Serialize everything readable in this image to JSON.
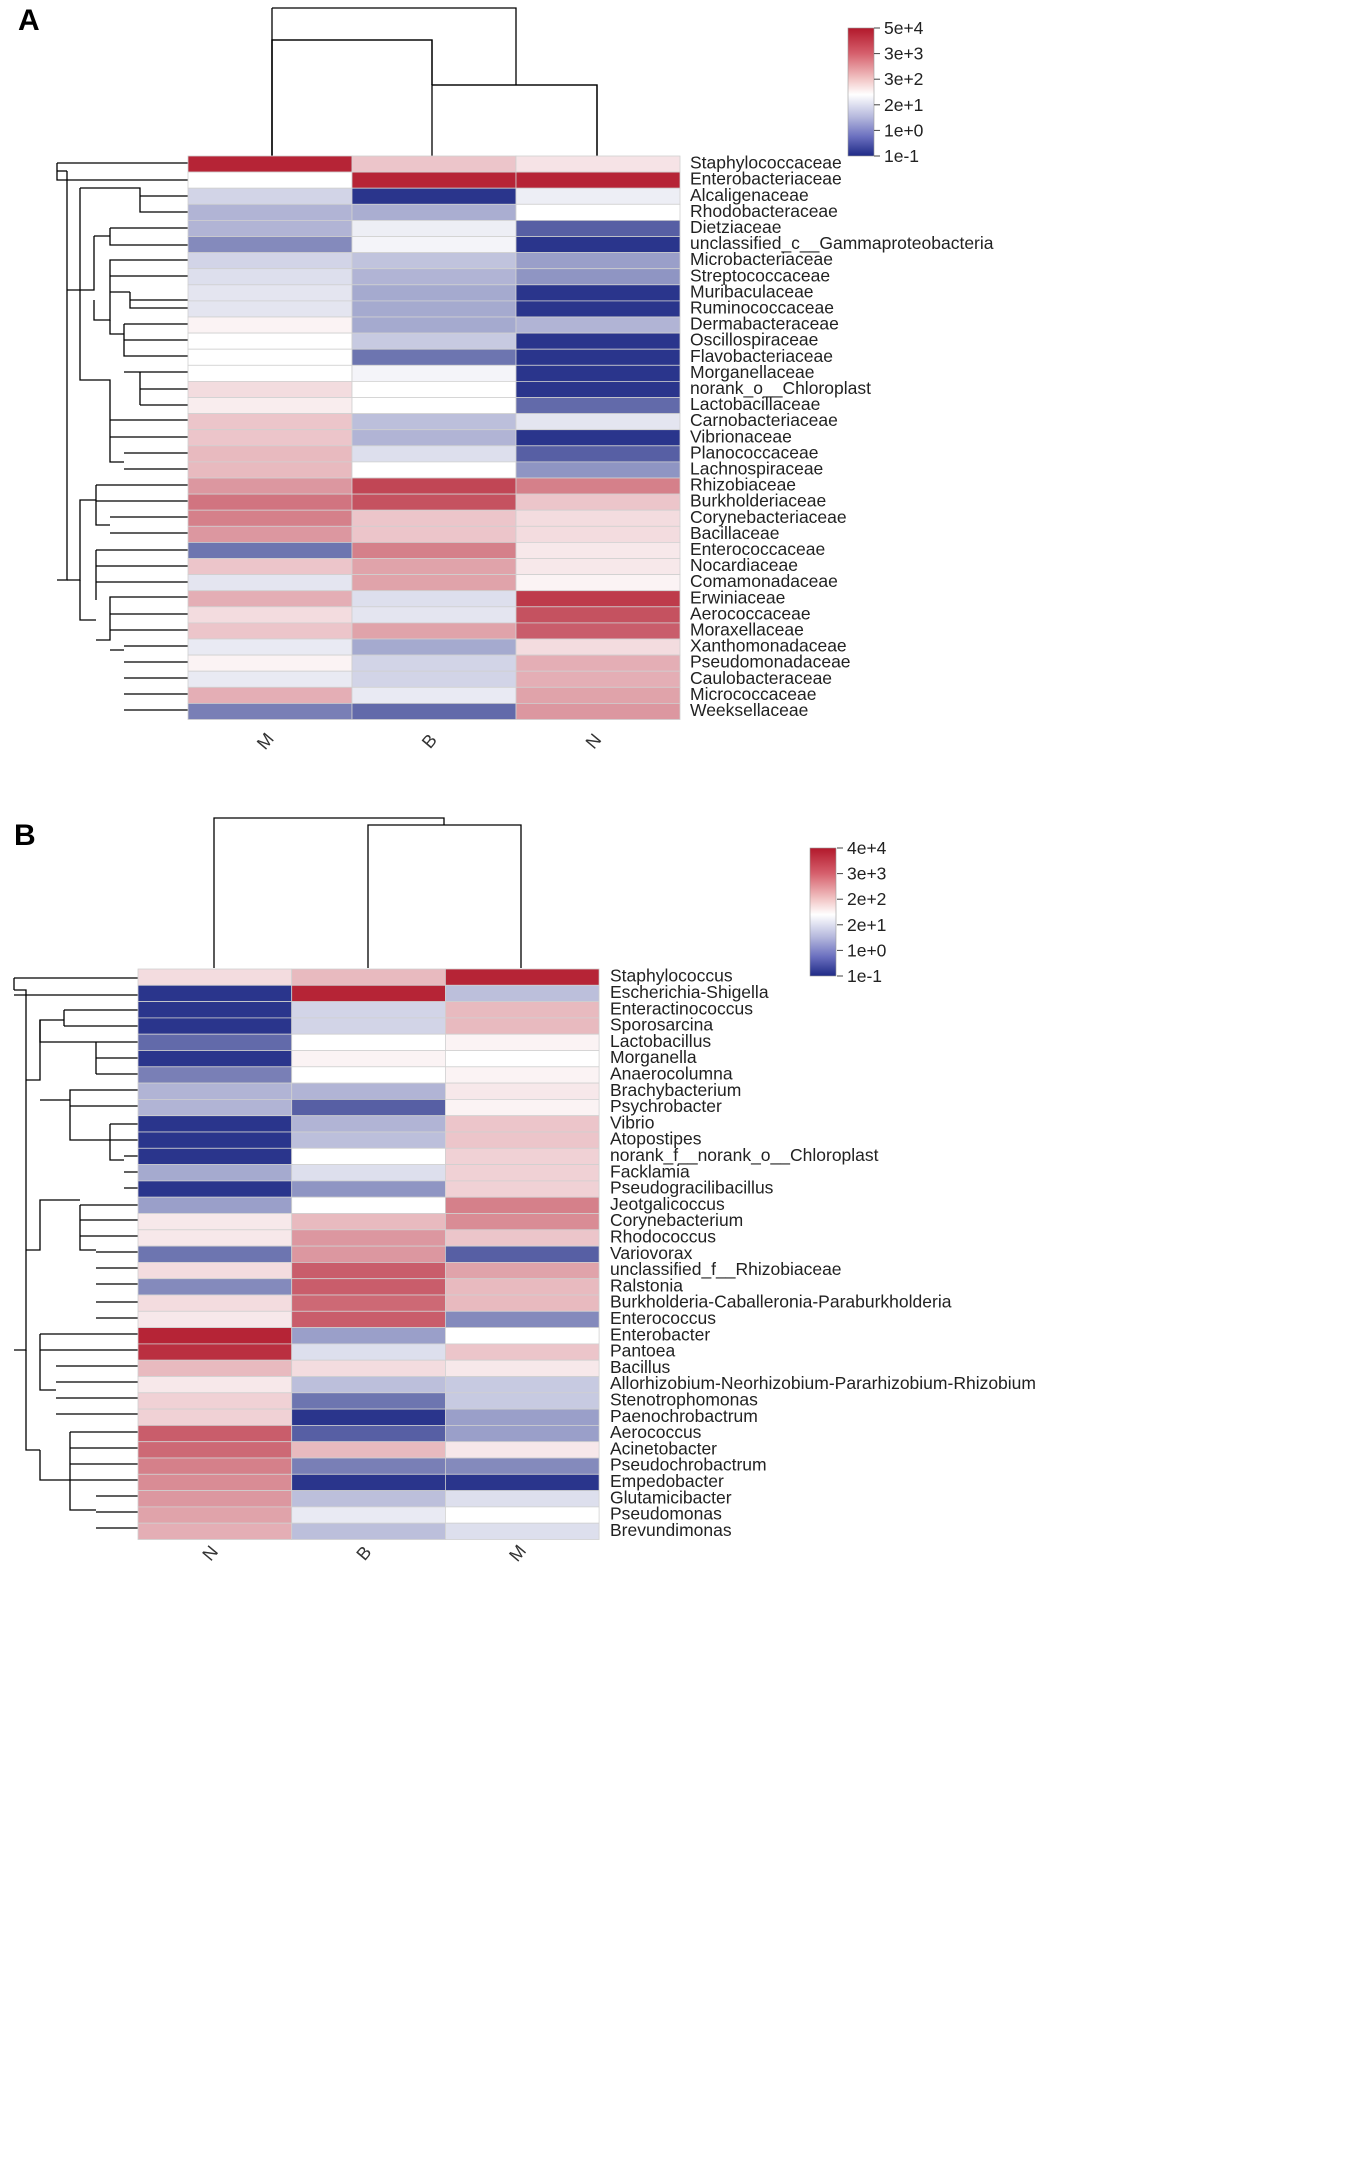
{
  "chart_data": [
    {
      "type": "heatmap",
      "panel": "A",
      "columns": [
        "M",
        "B",
        "N"
      ],
      "rows": [
        "Staphylococcaceae",
        "Enterobacteriaceae",
        "Alcaligenaceae",
        "Rhodobacteraceae",
        "Dietziaceae",
        "unclassified_c__Gammaproteobacteria",
        "Microbacteriaceae",
        "Streptococcaceae",
        "Muribaculaceae",
        "Ruminococcaceae",
        "Dermabacteraceae",
        "Oscillospiraceae",
        "Flavobacteriaceae",
        "Morganellaceae",
        "norank_o__Chloroplast",
        "Lactobacillaceae",
        "Carnobacteriaceae",
        "Vibrionaceae",
        "Planococcaceae",
        "Lachnospiraceae",
        "Rhizobiaceae",
        "Burkholderiaceae",
        "Corynebacteriaceae",
        "Bacillaceae",
        "Enterococcaceae",
        "Nocardiaceae",
        "Comamonadaceae",
        "Erwiniaceae",
        "Aerococcaceae",
        "Moraxellaceae",
        "Xanthomonadaceae",
        "Pseudomonadaceae",
        "Caulobacteraceae",
        "Micrococcaceae",
        "Weeksellaceae"
      ],
      "values": [
        [
          0.95,
          0.25,
          0.12
        ],
        [
          0.0,
          0.95,
          0.95
        ],
        [
          -0.2,
          -0.95,
          -0.08
        ],
        [
          -0.35,
          -0.38,
          0.0
        ],
        [
          -0.35,
          -0.08,
          -0.75
        ],
        [
          -0.55,
          -0.05,
          -0.95
        ],
        [
          -0.2,
          -0.28,
          -0.45
        ],
        [
          -0.15,
          -0.35,
          -0.5
        ],
        [
          -0.12,
          -0.4,
          -0.95
        ],
        [
          -0.12,
          -0.4,
          -0.95
        ],
        [
          0.05,
          -0.4,
          -0.35
        ],
        [
          0.0,
          -0.25,
          -0.95
        ],
        [
          0.0,
          -0.65,
          -0.95
        ],
        [
          0.0,
          -0.05,
          -0.95
        ],
        [
          0.15,
          0.0,
          -0.95
        ],
        [
          0.08,
          0.0,
          -0.7
        ],
        [
          0.25,
          -0.3,
          -0.12
        ],
        [
          0.25,
          -0.35,
          -0.95
        ],
        [
          0.3,
          -0.15,
          -0.75
        ],
        [
          0.3,
          0.0,
          -0.5
        ],
        [
          0.45,
          0.8,
          0.55
        ],
        [
          0.6,
          0.75,
          0.25
        ],
        [
          0.55,
          0.25,
          0.15
        ],
        [
          0.45,
          0.25,
          0.15
        ],
        [
          -0.65,
          0.55,
          0.1
        ],
        [
          0.25,
          0.4,
          0.1
        ],
        [
          -0.12,
          0.4,
          0.05
        ],
        [
          0.35,
          -0.15,
          0.85
        ],
        [
          0.15,
          -0.12,
          0.75
        ],
        [
          0.25,
          0.4,
          0.7
        ],
        [
          -0.1,
          -0.4,
          0.15
        ],
        [
          0.05,
          -0.2,
          0.35
        ],
        [
          -0.1,
          -0.2,
          0.35
        ],
        [
          0.35,
          -0.1,
          0.4
        ],
        [
          -0.6,
          -0.7,
          0.45
        ]
      ],
      "legend": [
        "5e+4",
        "3e+3",
        "3e+2",
        "2e+1",
        "1e+0",
        "1e-1"
      ]
    },
    {
      "type": "heatmap",
      "panel": "B",
      "columns": [
        "N",
        "B",
        "M"
      ],
      "rows": [
        "Staphylococcus",
        "Escherichia-Shigella",
        "Enteractinococcus",
        "Sporosarcina",
        "Lactobacillus",
        "Morganella",
        "Anaerocolumna",
        "Brachybacterium",
        "Psychrobacter",
        "Vibrio",
        "Atopostipes",
        "norank_f__norank_o__Chloroplast",
        "Facklamia",
        "Pseudogracilibacillus",
        "Jeotgalicoccus",
        "Corynebacterium",
        "Rhodococcus",
        "Variovorax",
        "unclassified_f__Rhizobiaceae",
        "Ralstonia",
        "Burkholderia-Caballeronia-Paraburkholderia",
        "Enterococcus",
        "Enterobacter",
        "Pantoea",
        "Bacillus",
        "Allorhizobium-Neorhizobium-Pararhizobium-Rhizobium",
        "Stenotrophomonas",
        "Paenochrobactrum",
        "Aerococcus",
        "Acinetobacter",
        "Pseudochrobactrum",
        "Empedobacter",
        "Glutamicibacter",
        "Pseudomonas",
        "Brevundimonas"
      ],
      "values": [
        [
          0.15,
          0.3,
          0.95
        ],
        [
          -0.95,
          0.95,
          -0.3
        ],
        [
          -0.95,
          -0.2,
          0.3
        ],
        [
          -0.95,
          -0.2,
          0.3
        ],
        [
          -0.7,
          0.0,
          0.05
        ],
        [
          -0.95,
          0.05,
          0.0
        ],
        [
          -0.6,
          0.0,
          0.05
        ],
        [
          -0.35,
          -0.35,
          0.1
        ],
        [
          -0.35,
          -0.75,
          0.05
        ],
        [
          -0.95,
          -0.35,
          0.25
        ],
        [
          -0.95,
          -0.3,
          0.25
        ],
        [
          -0.95,
          0.0,
          0.2
        ],
        [
          -0.4,
          -0.15,
          0.2
        ],
        [
          -0.95,
          -0.5,
          0.2
        ],
        [
          -0.45,
          0.0,
          0.55
        ],
        [
          0.1,
          0.3,
          0.5
        ],
        [
          0.1,
          0.45,
          0.25
        ],
        [
          -0.65,
          0.45,
          -0.75
        ],
        [
          0.15,
          0.7,
          0.4
        ],
        [
          -0.55,
          0.7,
          0.3
        ],
        [
          0.15,
          0.65,
          0.3
        ],
        [
          0.1,
          0.7,
          -0.55
        ],
        [
          0.95,
          -0.45,
          0.0
        ],
        [
          0.9,
          -0.15,
          0.25
        ],
        [
          0.3,
          0.15,
          0.1
        ],
        [
          0.1,
          -0.3,
          -0.25
        ],
        [
          0.2,
          -0.65,
          -0.25
        ],
        [
          0.2,
          -0.95,
          -0.45
        ],
        [
          0.7,
          -0.75,
          -0.45
        ],
        [
          0.65,
          0.3,
          0.1
        ],
        [
          0.55,
          -0.6,
          -0.55
        ],
        [
          0.5,
          -0.95,
          -0.95
        ],
        [
          0.45,
          -0.3,
          -0.15
        ],
        [
          0.4,
          -0.1,
          0.0
        ],
        [
          0.35,
          -0.3,
          -0.15
        ]
      ],
      "legend": [
        "4e+4",
        "3e+3",
        "2e+2",
        "2e+1",
        "1e+0",
        "1e-1"
      ]
    }
  ]
}
